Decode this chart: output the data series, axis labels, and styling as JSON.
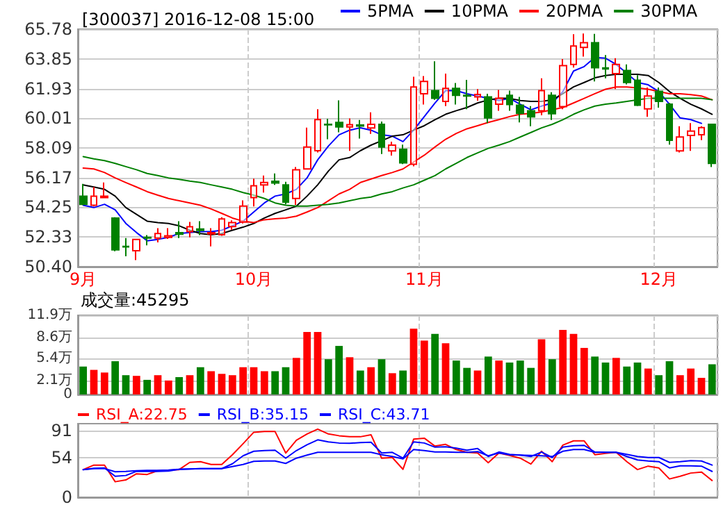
{
  "chart_data": [
    {
      "type": "candlestick",
      "title": "[300037] 2016-12-08 15:00",
      "categories": [
        "9月",
        null,
        null,
        null,
        null,
        null,
        null,
        null,
        null,
        null,
        null,
        null,
        null,
        null,
        null,
        null,
        "10月",
        null,
        null,
        null,
        null,
        null,
        null,
        null,
        null,
        null,
        null,
        null,
        null,
        null,
        null,
        null,
        "11月",
        null,
        null,
        null,
        null,
        null,
        null,
        null,
        null,
        null,
        null,
        null,
        null,
        null,
        null,
        null,
        null,
        null,
        null,
        null,
        null,
        null,
        "12月",
        null,
        null,
        null,
        null,
        null
      ],
      "ohlc": [
        [
          54.97,
          55.76,
          54.38,
          54.44
        ],
        [
          54.38,
          55.56,
          54.3,
          54.97
        ],
        [
          54.88,
          55.85,
          54.85,
          54.97
        ],
        [
          53.55,
          53.6,
          51.4,
          51.49
        ],
        [
          51.72,
          52.26,
          51.08,
          51.68
        ],
        [
          51.43,
          52.2,
          50.83,
          52.17
        ],
        [
          52.3,
          52.45,
          51.78,
          52.26
        ],
        [
          52.26,
          52.9,
          51.97,
          52.55
        ],
        [
          52.3,
          52.9,
          52.2,
          52.4
        ],
        [
          52.6,
          53.35,
          52.26,
          52.5
        ],
        [
          52.67,
          53.3,
          52.3,
          52.99
        ],
        [
          52.84,
          53.35,
          52.45,
          52.75
        ],
        [
          52.52,
          52.9,
          51.72,
          52.6
        ],
        [
          52.47,
          53.6,
          52.4,
          53.49
        ],
        [
          53.0,
          53.4,
          52.8,
          53.26
        ],
        [
          53.29,
          54.7,
          53.2,
          54.32
        ],
        [
          54.88,
          56.1,
          54.3,
          55.64
        ],
        [
          55.7,
          56.3,
          55.2,
          55.85
        ],
        [
          55.93,
          56.44,
          55.7,
          55.82
        ],
        [
          55.7,
          55.9,
          54.44,
          54.58
        ],
        [
          54.82,
          56.85,
          54.4,
          56.67
        ],
        [
          56.73,
          59.4,
          56.7,
          58.15
        ],
        [
          57.91,
          60.6,
          57.8,
          59.92
        ],
        [
          59.62,
          59.98,
          58.65,
          59.58
        ],
        [
          59.74,
          61.17,
          59.1,
          59.45
        ],
        [
          59.45,
          60.0,
          57.9,
          59.6
        ],
        [
          59.57,
          59.9,
          58.7,
          59.51
        ],
        [
          59.38,
          60.4,
          59.0,
          59.62
        ],
        [
          59.62,
          59.8,
          57.7,
          58.15
        ],
        [
          57.9,
          58.5,
          57.6,
          58.27
        ],
        [
          58.0,
          58.3,
          57.05,
          57.12
        ],
        [
          57.03,
          62.7,
          56.9,
          62.04
        ],
        [
          61.6,
          62.75,
          60.9,
          62.4
        ],
        [
          61.8,
          63.7,
          61.2,
          61.3
        ],
        [
          61.1,
          62.9,
          60.8,
          61.95
        ],
        [
          61.95,
          62.3,
          60.9,
          61.5
        ],
        [
          61.5,
          62.5,
          60.6,
          61.45
        ],
        [
          61.4,
          61.9,
          61.15,
          61.55
        ],
        [
          61.4,
          61.6,
          59.7,
          60.03
        ],
        [
          60.92,
          61.85,
          60.5,
          61.3
        ],
        [
          61.5,
          61.8,
          60.5,
          60.9
        ],
        [
          60.86,
          61.4,
          59.74,
          60.33
        ],
        [
          60.5,
          60.8,
          59.5,
          60.1
        ],
        [
          60.5,
          62.6,
          60.2,
          61.8
        ],
        [
          61.5,
          61.7,
          59.9,
          60.3
        ],
        [
          60.77,
          63.85,
          60.6,
          63.42
        ],
        [
          63.5,
          65.45,
          63.3,
          64.69
        ],
        [
          64.6,
          65.5,
          64.0,
          64.9
        ],
        [
          64.9,
          65.48,
          62.4,
          63.28
        ],
        [
          63.27,
          64.1,
          62.6,
          63.2
        ],
        [
          62.9,
          63.9,
          61.9,
          63.5
        ],
        [
          63.1,
          63.5,
          62.2,
          62.33
        ],
        [
          62.48,
          62.8,
          60.8,
          60.86
        ],
        [
          60.62,
          62.0,
          60.1,
          61.45
        ],
        [
          61.75,
          62.0,
          60.7,
          61.1
        ],
        [
          60.92,
          61.0,
          58.3,
          58.59
        ],
        [
          57.9,
          59.5,
          57.8,
          58.8
        ],
        [
          58.9,
          59.7,
          57.9,
          59.18
        ],
        [
          58.94,
          59.5,
          58.6,
          59.4
        ],
        [
          59.62,
          59.62,
          56.85,
          57.09
        ]
      ],
      "colors": [
        "#008000",
        "#ff0000",
        "#ff0000",
        "#008000",
        "#008000",
        "#ff0000",
        "#008000",
        "#ff0000",
        "#ff0000",
        "#008000",
        "#ff0000",
        "#008000",
        "#ff0000",
        "#ff0000",
        "#ff0000",
        "#ff0000",
        "#ff0000",
        "#ff0000",
        "#008000",
        "#008000",
        "#ff0000",
        "#ff0000",
        "#ff0000",
        "#008000",
        "#008000",
        "#ff0000",
        "#008000",
        "#ff0000",
        "#008000",
        "#ff0000",
        "#008000",
        "#ff0000",
        "#ff0000",
        "#008000",
        "#ff0000",
        "#008000",
        "#008000",
        "#ff0000",
        "#008000",
        "#ff0000",
        "#008000",
        "#008000",
        "#008000",
        "#ff0000",
        "#008000",
        "#ff0000",
        "#ff0000",
        "#ff0000",
        "#008000",
        "#008000",
        "#ff0000",
        "#008000",
        "#008000",
        "#ff0000",
        "#008000",
        "#008000",
        "#ff0000",
        "#ff0000",
        "#ff0000",
        "#008000"
      ],
      "series": [
        {
          "name": "5PMA",
          "type": "line",
          "color": "#0000ff",
          "values": [
            54.38,
            54.23,
            54.44,
            54.08,
            53.2,
            52.61,
            52.08,
            52.17,
            52.3,
            52.55,
            52.61,
            52.67,
            52.67,
            52.76,
            53.05,
            53.35,
            53.94,
            54.53,
            54.97,
            55.11,
            55.41,
            56.15,
            57.32,
            58.21,
            58.94,
            59.24,
            59.39,
            59.24,
            58.94,
            58.85,
            58.5,
            59.24,
            60.12,
            61.0,
            61.8,
            61.8,
            61.6,
            61.45,
            61.3,
            61.16,
            61.3,
            60.92,
            60.56,
            60.8,
            61.0,
            61.74,
            63.07,
            63.36,
            63.95,
            63.9,
            63.5,
            62.92,
            62.33,
            62.18,
            61.74,
            60.92,
            60.03,
            59.92,
            59.68,
            null
          ]
        },
        {
          "name": "10PMA",
          "type": "line",
          "color": "#000000",
          "values": [
            55.7,
            55.56,
            55.41,
            54.97,
            54.23,
            53.79,
            53.35,
            53.26,
            53.2,
            53.05,
            52.76,
            52.55,
            52.47,
            52.55,
            52.76,
            52.96,
            53.2,
            53.55,
            53.85,
            54.08,
            54.32,
            54.97,
            55.7,
            56.59,
            57.32,
            57.47,
            57.91,
            58.27,
            58.56,
            58.85,
            58.94,
            59.24,
            59.53,
            59.92,
            60.27,
            60.5,
            60.71,
            61.0,
            61.2,
            61.3,
            61.3,
            61.16,
            61.1,
            61.1,
            61.2,
            61.6,
            62.04,
            62.33,
            62.63,
            62.78,
            62.86,
            62.86,
            62.86,
            62.78,
            62.33,
            61.74,
            61.3,
            60.92,
            60.62,
            60.27
          ]
        },
        {
          "name": "20PMA",
          "type": "line",
          "color": "#ff0000",
          "values": [
            56.79,
            56.73,
            56.5,
            56.15,
            55.85,
            55.56,
            55.26,
            55.03,
            54.82,
            54.67,
            54.53,
            54.38,
            54.14,
            53.85,
            53.55,
            53.35,
            53.26,
            53.44,
            53.5,
            53.55,
            53.67,
            53.94,
            54.23,
            54.67,
            55.11,
            55.41,
            55.85,
            56.08,
            56.3,
            56.5,
            56.73,
            57.18,
            57.62,
            58.15,
            58.65,
            59.03,
            59.33,
            59.53,
            59.74,
            59.92,
            60.12,
            60.27,
            60.33,
            60.42,
            60.56,
            60.71,
            61.0,
            61.3,
            61.6,
            61.89,
            62.04,
            62.04,
            61.98,
            61.89,
            61.74,
            61.6,
            61.6,
            61.54,
            61.45,
            61.21
          ]
        },
        {
          "name": "30PMA",
          "type": "line",
          "color": "#008000",
          "values": [
            57.53,
            57.38,
            57.27,
            57.09,
            56.88,
            56.68,
            56.44,
            56.3,
            56.15,
            56.06,
            55.94,
            55.85,
            55.7,
            55.56,
            55.41,
            55.2,
            55.03,
            54.82,
            54.53,
            54.38,
            54.32,
            54.32,
            54.38,
            54.44,
            54.53,
            54.67,
            54.82,
            54.91,
            55.11,
            55.26,
            55.5,
            55.7,
            56.0,
            56.3,
            56.73,
            57.09,
            57.47,
            57.77,
            58.06,
            58.27,
            58.5,
            58.8,
            59.09,
            59.39,
            59.62,
            59.92,
            60.27,
            60.56,
            60.8,
            60.92,
            61.0,
            61.1,
            61.2,
            61.3,
            61.3,
            61.3,
            61.3,
            61.3,
            61.3,
            61.21
          ]
        }
      ],
      "ylim": [
        50.4,
        65.78
      ],
      "yticks": [
        {
          "value": 50.4,
          "label": "50.40"
        },
        52.33,
        54.25,
        56.17,
        58.09,
        60.01,
        61.93,
        63.85,
        65.78
      ],
      "grid": true,
      "legend": "top"
    },
    {
      "type": "bar",
      "annotations": [
        "成交量:45295"
      ],
      "categories": [
        null,
        null,
        null,
        null,
        null,
        null,
        null,
        null,
        null,
        null,
        null,
        null,
        null,
        null,
        null,
        null,
        null,
        null,
        null,
        null,
        null,
        null,
        null,
        null,
        null,
        null,
        null,
        null,
        null,
        null,
        null,
        null,
        null,
        null,
        null,
        null,
        null,
        null,
        null,
        null,
        null,
        null,
        null,
        null,
        null,
        null,
        null,
        null,
        null,
        null,
        null,
        null,
        null,
        null,
        null,
        null,
        null,
        null,
        null,
        null
      ],
      "values": [
        4.2,
        3.7,
        3.3,
        5.0,
        2.9,
        2.8,
        2.2,
        2.9,
        2.1,
        2.6,
        2.9,
        4.1,
        3.5,
        3.1,
        2.9,
        4.1,
        4.1,
        3.5,
        3.5,
        4.1,
        5.5,
        9.4,
        9.4,
        5.3,
        7.3,
        5.6,
        3.6,
        4.1,
        5.3,
        3.2,
        3.6,
        9.9,
        8.1,
        9.1,
        7.7,
        5.1,
        4.0,
        3.6,
        5.7,
        5.1,
        4.8,
        5.1,
        4.0,
        8.3,
        5.3,
        9.7,
        9.1,
        7.0,
        5.7,
        4.8,
        5.5,
        4.2,
        4.8,
        3.9,
        2.9,
        5.0,
        2.9,
        3.9,
        2.5,
        4.53
      ],
      "colors": [
        "#008000",
        "#ff0000",
        "#ff0000",
        "#008000",
        "#008000",
        "#ff0000",
        "#008000",
        "#ff0000",
        "#ff0000",
        "#008000",
        "#ff0000",
        "#008000",
        "#ff0000",
        "#ff0000",
        "#ff0000",
        "#ff0000",
        "#ff0000",
        "#ff0000",
        "#008000",
        "#008000",
        "#ff0000",
        "#ff0000",
        "#ff0000",
        "#008000",
        "#008000",
        "#ff0000",
        "#008000",
        "#ff0000",
        "#008000",
        "#ff0000",
        "#008000",
        "#ff0000",
        "#ff0000",
        "#008000",
        "#ff0000",
        "#008000",
        "#008000",
        "#ff0000",
        "#008000",
        "#ff0000",
        "#008000",
        "#008000",
        "#008000",
        "#ff0000",
        "#008000",
        "#ff0000",
        "#ff0000",
        "#ff0000",
        "#008000",
        "#008000",
        "#ff0000",
        "#008000",
        "#008000",
        "#ff0000",
        "#008000",
        "#008000",
        "#ff0000",
        "#ff0000",
        "#ff0000",
        "#008000"
      ],
      "ylim": [
        0,
        11.9
      ],
      "yticks": [
        0,
        {
          "value": 2.1,
          "label": "2.1万"
        },
        {
          "value": 5.4,
          "label": "5.4万"
        },
        {
          "value": 8.6,
          "label": "8.6万"
        },
        {
          "value": 11.9,
          "label": "11.9万"
        }
      ],
      "grid": true,
      "tick_labels": "y"
    },
    {
      "type": "line",
      "categories": [
        null,
        null,
        null,
        null,
        null,
        null,
        null,
        null,
        null,
        null,
        null,
        null,
        null,
        null,
        null,
        null,
        null,
        null,
        null,
        null,
        null,
        null,
        null,
        null,
        null,
        null,
        null,
        null,
        null,
        null,
        null,
        null,
        null,
        null,
        null,
        null,
        null,
        null,
        null,
        null,
        null,
        null,
        null,
        null,
        null,
        null,
        null,
        null,
        null,
        null,
        null,
        null,
        null,
        null,
        null,
        null,
        null,
        null,
        null,
        null
      ],
      "series": [
        {
          "name": "RSI_A:22.75",
          "color": "#ff0000",
          "values": [
            37.6,
            43.7,
            43.7,
            21.1,
            23.5,
            31.9,
            31,
            36.1,
            36.6,
            37.6,
            47.4,
            48.4,
            44.6,
            44.6,
            57.8,
            72.8,
            88.3,
            89.3,
            89.3,
            60.1,
            77.5,
            86,
            92.5,
            86,
            83.6,
            82.2,
            82.2,
            85,
            53.1,
            54,
            38,
            78.9,
            80.3,
            69.5,
            71.9,
            64.8,
            61,
            60.1,
            47,
            60.1,
            56.8,
            53.1,
            45.1,
            62.5,
            48.4,
            70.9,
            76.6,
            76.6,
            57.8,
            59.6,
            61,
            48.4,
            37.6,
            42.3,
            39.9,
            24.9,
            28.6,
            32.9,
            34.3,
            22.75
          ]
        },
        {
          "name": "RSI_B:35.15",
          "color": "#0000ff",
          "values": [
            37.6,
            39.4,
            39.9,
            28.6,
            29.6,
            35.2,
            35.2,
            35.2,
            35.7,
            38,
            38.5,
            39,
            39,
            39,
            45.5,
            56.4,
            62.5,
            63.4,
            63.9,
            53.1,
            63.4,
            71.4,
            78,
            75.2,
            73.7,
            73.3,
            74.2,
            74.7,
            60.1,
            61,
            53.1,
            75.2,
            73.7,
            68.1,
            68.6,
            66.7,
            63.9,
            66.2,
            55.4,
            61.5,
            58.2,
            57.3,
            55.4,
            61.5,
            54,
            68.1,
            70,
            70.5,
            61.5,
            61,
            61,
            55.4,
            50.7,
            49.3,
            48.4,
            39.9,
            42.7,
            42.7,
            42.3,
            35.15
          ]
        },
        {
          "name": "RSI_C:43.71",
          "color": "#0000ff",
          "values": [
            37.6,
            39,
            39,
            34.7,
            35.2,
            36.1,
            36.6,
            36.6,
            37.1,
            38,
            38.5,
            39,
            39,
            39,
            41.8,
            44.6,
            48.8,
            49.3,
            49.3,
            46,
            53.1,
            57.3,
            61,
            61,
            61,
            61,
            61,
            61,
            57.8,
            55.4,
            52.1,
            64.8,
            63.4,
            61.5,
            61.5,
            61,
            61,
            62,
            56.4,
            60.1,
            57.8,
            57.3,
            56.8,
            56.4,
            55.4,
            62.5,
            64.8,
            64.8,
            61,
            61,
            61,
            58.2,
            55.4,
            54,
            54,
            47.4,
            48.4,
            49.8,
            49.3,
            43.71
          ]
        }
      ],
      "ylim": [
        0,
        100
      ],
      "yticks": [
        0,
        54,
        91
      ],
      "grid": true,
      "tick_labels": "y",
      "legend": "top left"
    }
  ]
}
